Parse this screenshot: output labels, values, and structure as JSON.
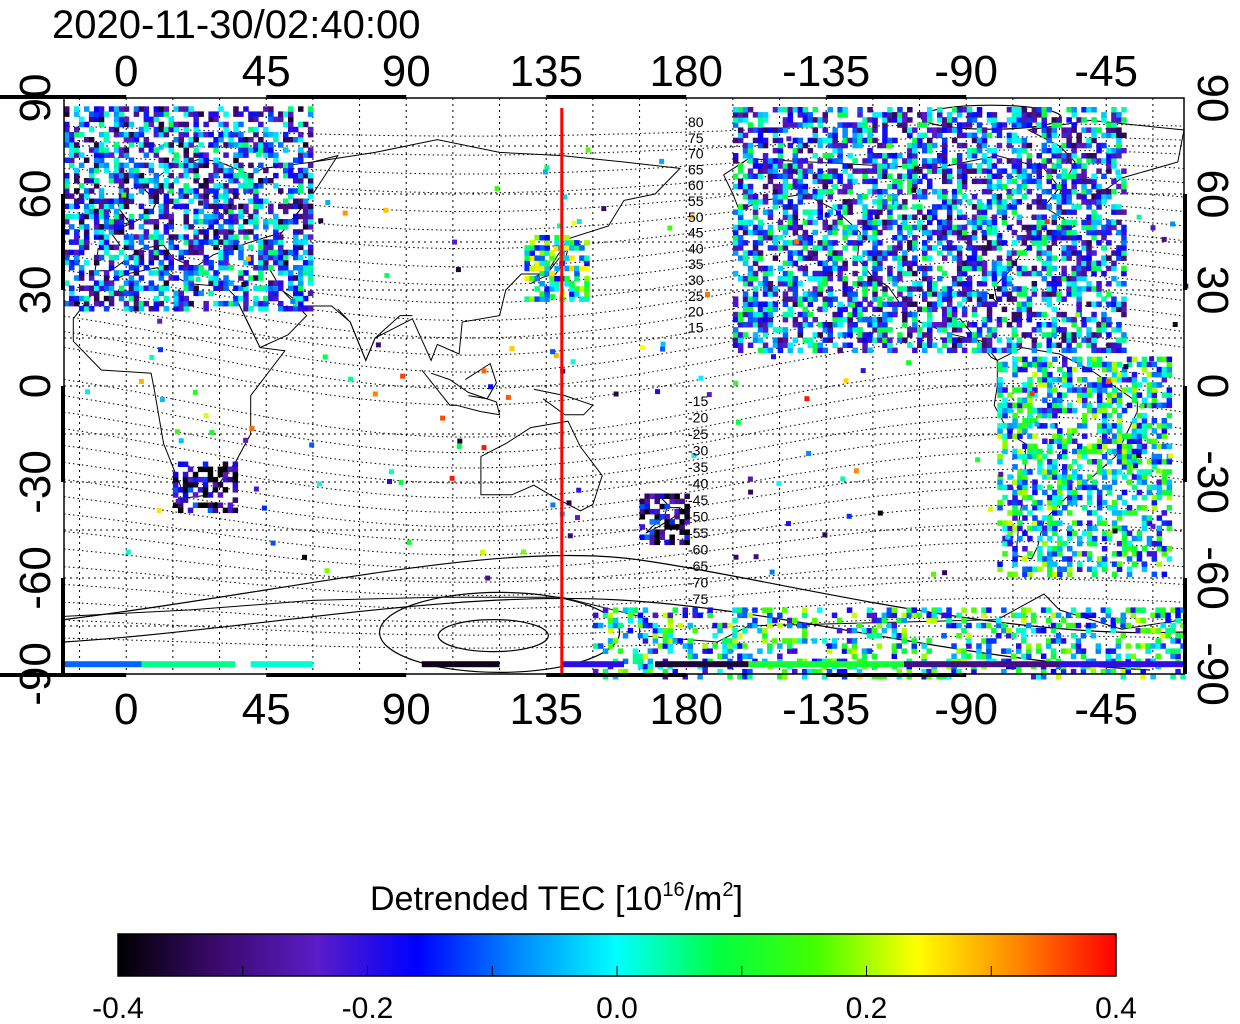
{
  "timestamp": "2020-11-30/02:40:00",
  "map": {
    "lon_ticks": [
      "0",
      "45",
      "90",
      "135",
      "180",
      "-135",
      "-90",
      "-45"
    ],
    "lat_ticks": [
      "90",
      "60",
      "30",
      "0",
      "-30",
      "-60",
      "-90"
    ],
    "lon_range": [
      -20,
      340
    ],
    "lat_range": [
      -90,
      90
    ],
    "grid": "dotted 15deg",
    "marker_line": {
      "lon": 140,
      "color": "#ff0000"
    },
    "contour_labels_north": [
      "80",
      "75",
      "70",
      "65",
      "60",
      "55",
      "50",
      "45",
      "40",
      "35",
      "30",
      "25",
      "20",
      "15"
    ],
    "contour_labels_south": [
      "-15",
      "-20",
      "-25",
      "-30",
      "-35",
      "-40",
      "-45",
      "-50",
      "-55",
      "-60",
      "-65",
      "-70",
      "-75"
    ]
  },
  "colorbar": {
    "title_main": "Detrended TEC  [10",
    "title_sup": "16",
    "title_mid": "/m",
    "title_sup2": "2",
    "title_end": "]",
    "min": -0.4,
    "max": 0.4,
    "tick_labels": [
      "-0.4",
      "-0.2",
      "0.0",
      "0.2",
      "0.4"
    ],
    "colormap": [
      "#000000",
      "#3a0a6e",
      "#5a1cc8",
      "#0000ff",
      "#0088ff",
      "#00ffff",
      "#00ff44",
      "#44ff00",
      "#ffff00",
      "#ff8800",
      "#ff0000"
    ]
  },
  "data_regions": [
    {
      "name": "europe",
      "lon": [
        -20,
        60
      ],
      "lat": [
        25,
        88
      ],
      "mean": -0.15,
      "density": 0.55
    },
    {
      "name": "japan",
      "lon": [
        128,
        148
      ],
      "lat": [
        28,
        48
      ],
      "mean": 0.05,
      "density": 0.6
    },
    {
      "name": "north-america",
      "lon": [
        195,
        320
      ],
      "lat": [
        12,
        88
      ],
      "mean": -0.12,
      "density": 0.55
    },
    {
      "name": "south-america",
      "lon": [
        280,
        335
      ],
      "lat": [
        -58,
        10
      ],
      "mean": 0.0,
      "density": 0.5
    },
    {
      "name": "south-africa",
      "lon": [
        15,
        35
      ],
      "lat": [
        -38,
        -22
      ],
      "mean": -0.32,
      "density": 0.6
    },
    {
      "name": "new-zealand",
      "lon": [
        165,
        180
      ],
      "lat": [
        -48,
        -33
      ],
      "mean": -0.3,
      "density": 0.55
    },
    {
      "name": "antarctica",
      "lon": [
        150,
        340
      ],
      "lat": [
        -90,
        -68
      ],
      "mean": 0.0,
      "density": 0.35
    }
  ]
}
